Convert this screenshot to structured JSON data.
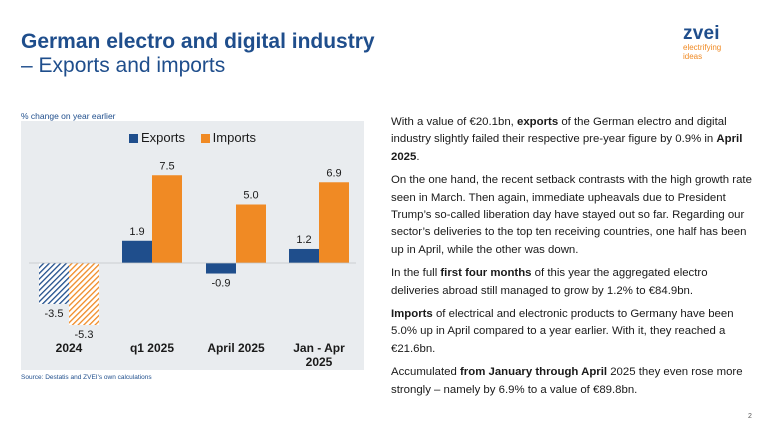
{
  "slide": {
    "title_line1": "German electro and digital industry",
    "title_line2": "– Exports and imports",
    "logo_word": "zvei",
    "logo_tag1": "electrifying",
    "logo_tag2": "ideas",
    "page_number": "2"
  },
  "colors": {
    "title": "#1f4e8c",
    "exports": "#1f4e8c",
    "imports": "#f08a24",
    "chart_background": "#e9ecef"
  },
  "chart_data": {
    "type": "bar",
    "subtitle": "% change on year earlier",
    "source": "Source: Destatis and ZVEI's own calculations",
    "categories": [
      "2024",
      "q1 2025",
      "April 2025",
      "Jan - Apr 2025"
    ],
    "series": [
      {
        "name": "Exports",
        "color": "#1f4e8c",
        "values": [
          -3.5,
          1.9,
          -0.9,
          1.2
        ],
        "labels": [
          "-3.5",
          "1.9",
          "-0.9",
          "1.2"
        ]
      },
      {
        "name": "Imports",
        "color": "#f08a24",
        "values": [
          -5.3,
          7.5,
          5.0,
          6.9
        ],
        "labels": [
          "-5.3",
          "7.5",
          "5.0",
          "6.9"
        ]
      }
    ],
    "hatched_categories": [
      "2024"
    ],
    "legend": "top-center",
    "grid": false
  },
  "text": {
    "p1": [
      {
        "t": "With a value of €20.1bn, ",
        "b": false
      },
      {
        "t": "exports",
        "b": true
      },
      {
        "t": " of the German electro and digital industry slightly failed their respective pre-year figure by 0.9% in ",
        "b": false
      },
      {
        "t": "April 2025",
        "b": true
      },
      {
        "t": ".",
        "b": false
      }
    ],
    "p2": [
      {
        "t": "On the one hand, the recent setback contrasts with the high growth rate seen in March. Then again, immediate upheavals due to President Trump’s so-called liberation day have stayed out so far. Regarding our sector’s deliveries to the top ten receiving countries, one half has been up in April, while the other was down.",
        "b": false
      }
    ],
    "p3": [
      {
        "t": "In the full ",
        "b": false
      },
      {
        "t": "first four months",
        "b": true
      },
      {
        "t": " of this year the aggregated electro deliveries abroad still managed to grow by 1.2% to €84.9bn.",
        "b": false
      }
    ],
    "p4": [
      {
        "t": "Imports",
        "b": true
      },
      {
        "t": " of electrical and electronic products to Germany have been 5.0% up in April compared to a year earlier. With it, they reached a €21.6bn.",
        "b": false
      }
    ],
    "p5": [
      {
        "t": "Accumulated ",
        "b": false
      },
      {
        "t": "from January through April",
        "b": true
      },
      {
        "t": " 2025 they even rose more strongly – namely by 6.9% to a value of €89.8bn.",
        "b": false
      }
    ]
  }
}
